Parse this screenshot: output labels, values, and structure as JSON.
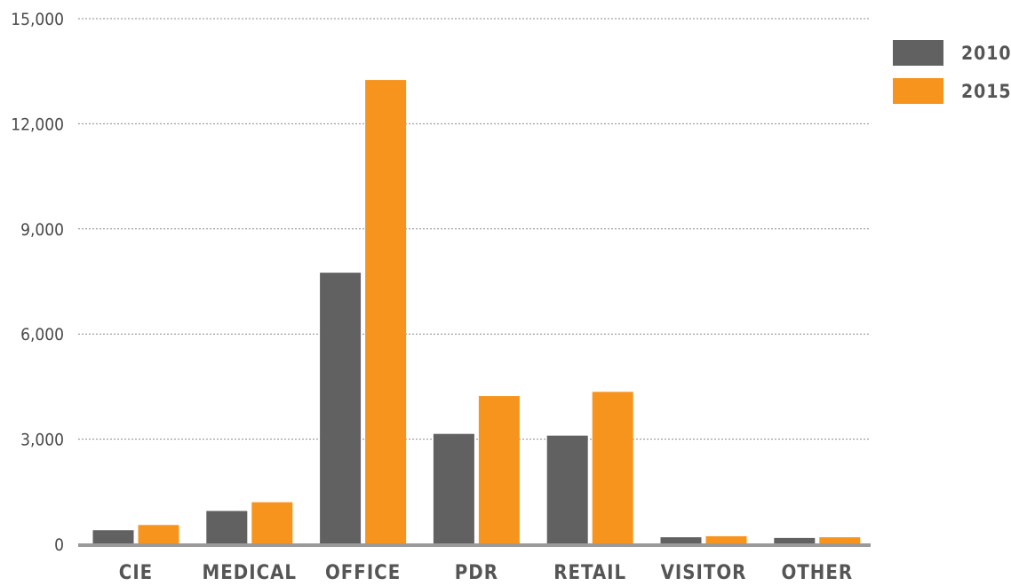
{
  "colors": {
    "series_2010": "#616161",
    "series_2015": "#f7941d",
    "grid": "#8a8a8a",
    "axis": "#9a9a9a"
  },
  "chart_data": {
    "type": "bar",
    "categories": [
      "CIE",
      "MEDICAL",
      "OFFICE",
      "PDR",
      "RETAIL",
      "VISITOR",
      "OTHER"
    ],
    "series": [
      {
        "name": "2010",
        "values": [
          400,
          950,
          7750,
          3150,
          3100,
          200,
          180
        ]
      },
      {
        "name": "2015",
        "values": [
          550,
          1200,
          13250,
          4230,
          4350,
          230,
          200
        ]
      }
    ],
    "yticks": [
      "0",
      "3,000",
      "6,000",
      "9,000",
      "12,000",
      "15,000"
    ],
    "ytick_values": [
      0,
      3000,
      6000,
      9000,
      12000,
      15000
    ],
    "ylim": [
      0,
      15000
    ],
    "grid": true,
    "legend_position": "top-right",
    "title": "",
    "xlabel": "",
    "ylabel": ""
  }
}
